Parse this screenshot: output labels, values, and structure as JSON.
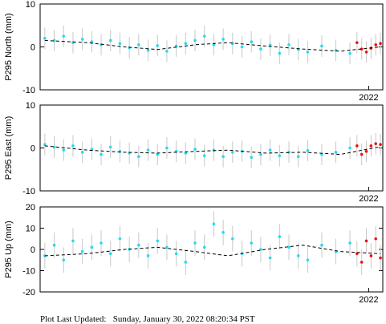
{
  "chart_data": [
    {
      "type": "scatter",
      "ylabel": "P295 North (mm)",
      "xlim": [
        2015.0,
        2022.3
      ],
      "xticks": [
        2022
      ],
      "ylim": [
        -10,
        10
      ],
      "yticks": [
        -10,
        0,
        10
      ],
      "series": [
        {
          "mode": "points",
          "color": "#22dcf0",
          "error": 2.5,
          "x": [
            2015.1,
            2015.3,
            2015.5,
            2015.7,
            2015.9,
            2016.1,
            2016.3,
            2016.5,
            2016.7,
            2016.9,
            2017.1,
            2017.3,
            2017.5,
            2017.7,
            2017.9,
            2018.1,
            2018.3,
            2018.5,
            2018.7,
            2018.9,
            2019.1,
            2019.3,
            2019.5,
            2019.7,
            2019.9,
            2020.1,
            2020.3,
            2020.5,
            2020.7,
            2021.0,
            2021.3,
            2021.6
          ],
          "values": [
            2.0,
            1.5,
            2.5,
            1.0,
            1.8,
            1.2,
            0.5,
            1.5,
            0.8,
            -0.2,
            0.5,
            -0.8,
            0.3,
            -1.0,
            0.2,
            0.8,
            1.5,
            2.5,
            0.5,
            1.8,
            0.8,
            0.0,
            1.2,
            -0.5,
            0.4,
            -1.5,
            0.5,
            -0.6,
            -1.2,
            0.2,
            -0.8,
            -1.5
          ]
        },
        {
          "mode": "points",
          "color": "#ee1111",
          "error": 2.5,
          "x": [
            2021.75,
            2021.85,
            2021.95,
            2022.05,
            2022.15,
            2022.25
          ],
          "values": [
            1.0,
            -0.5,
            -1.2,
            -0.3,
            0.5,
            0.8
          ]
        },
        {
          "mode": "line",
          "color": "#000000",
          "x": [
            2015.1,
            2016.0,
            2016.8,
            2017.5,
            2018.3,
            2019.0,
            2019.8,
            2020.6,
            2021.4,
            2022.25
          ],
          "values": [
            1.5,
            1.0,
            0.0,
            -0.6,
            0.5,
            1.0,
            0.2,
            -0.5,
            -1.0,
            0.0
          ]
        }
      ]
    },
    {
      "type": "scatter",
      "ylabel": "P295 East (mm)",
      "xlim": [
        2015.0,
        2022.3
      ],
      "xticks": [
        2022
      ],
      "ylim": [
        -10,
        10
      ],
      "yticks": [
        -10,
        0,
        10
      ],
      "series": [
        {
          "mode": "points",
          "color": "#22dcf0",
          "error": 2.5,
          "x": [
            2015.1,
            2015.3,
            2015.5,
            2015.7,
            2015.9,
            2016.1,
            2016.3,
            2016.5,
            2016.7,
            2016.9,
            2017.1,
            2017.3,
            2017.5,
            2017.7,
            2017.9,
            2018.1,
            2018.3,
            2018.5,
            2018.7,
            2018.9,
            2019.1,
            2019.3,
            2019.5,
            2019.7,
            2019.9,
            2020.1,
            2020.3,
            2020.5,
            2020.7,
            2021.0,
            2021.3,
            2021.6
          ],
          "values": [
            0.8,
            0.2,
            -0.5,
            0.5,
            -1.0,
            -0.3,
            -1.5,
            0.2,
            -0.8,
            -1.2,
            -2.0,
            -0.5,
            -1.5,
            0.0,
            -0.8,
            -1.2,
            -0.3,
            -1.8,
            -0.5,
            -2.0,
            -1.0,
            -0.8,
            -2.2,
            -1.5,
            -0.5,
            -1.8,
            -1.0,
            -2.0,
            -0.6,
            -1.5,
            -1.0,
            0.0
          ]
        },
        {
          "mode": "points",
          "color": "#ee1111",
          "error": 2.5,
          "x": [
            2021.75,
            2021.85,
            2021.95,
            2022.05,
            2022.15,
            2022.25
          ],
          "values": [
            0.5,
            -1.5,
            -0.8,
            0.5,
            1.0,
            0.8
          ]
        },
        {
          "mode": "line",
          "color": "#000000",
          "x": [
            2015.1,
            2016.0,
            2016.8,
            2017.5,
            2018.3,
            2019.0,
            2019.8,
            2020.6,
            2021.4,
            2022.25
          ],
          "values": [
            0.5,
            -0.5,
            -1.0,
            -1.2,
            -0.8,
            -0.5,
            -1.2,
            -1.0,
            -1.5,
            0.3
          ]
        }
      ]
    },
    {
      "type": "scatter",
      "ylabel": "P295 Up (mm)",
      "xlim": [
        2015.0,
        2022.3
      ],
      "xticks": [
        2022
      ],
      "ylim": [
        -20,
        20
      ],
      "yticks": [
        -20,
        -10,
        0,
        10,
        20
      ],
      "series": [
        {
          "mode": "points",
          "color": "#22dcf0",
          "error": 6,
          "x": [
            2015.1,
            2015.3,
            2015.5,
            2015.7,
            2015.9,
            2016.1,
            2016.3,
            2016.5,
            2016.7,
            2016.9,
            2017.1,
            2017.3,
            2017.5,
            2017.7,
            2017.9,
            2018.1,
            2018.3,
            2018.5,
            2018.7,
            2018.9,
            2019.1,
            2019.3,
            2019.5,
            2019.7,
            2019.9,
            2020.1,
            2020.3,
            2020.5,
            2020.7,
            2021.0,
            2021.3,
            2021.6
          ],
          "values": [
            -3,
            2,
            -5,
            4,
            -1,
            1,
            3,
            -2,
            5,
            0,
            2,
            -3,
            4,
            1,
            -2,
            -6,
            3,
            1,
            12,
            8,
            5,
            -2,
            3,
            0,
            -4,
            6,
            1,
            -3,
            -5,
            2,
            -1,
            3
          ]
        },
        {
          "mode": "points",
          "color": "#ee1111",
          "error": 6,
          "x": [
            2021.75,
            2021.85,
            2021.95,
            2022.05,
            2022.15,
            2022.25
          ],
          "values": [
            -2,
            -6,
            4,
            -3,
            5,
            -4
          ]
        },
        {
          "mode": "line",
          "color": "#000000",
          "x": [
            2015.1,
            2016.0,
            2016.8,
            2017.5,
            2018.3,
            2019.0,
            2019.8,
            2020.6,
            2021.4,
            2022.25
          ],
          "values": [
            -3,
            -2,
            0,
            1,
            -1,
            -3,
            0,
            2,
            -1,
            -2
          ]
        }
      ]
    }
  ],
  "footer": "Plot Last Updated:   Sunday, January 30, 2022 08:20:34 PST"
}
